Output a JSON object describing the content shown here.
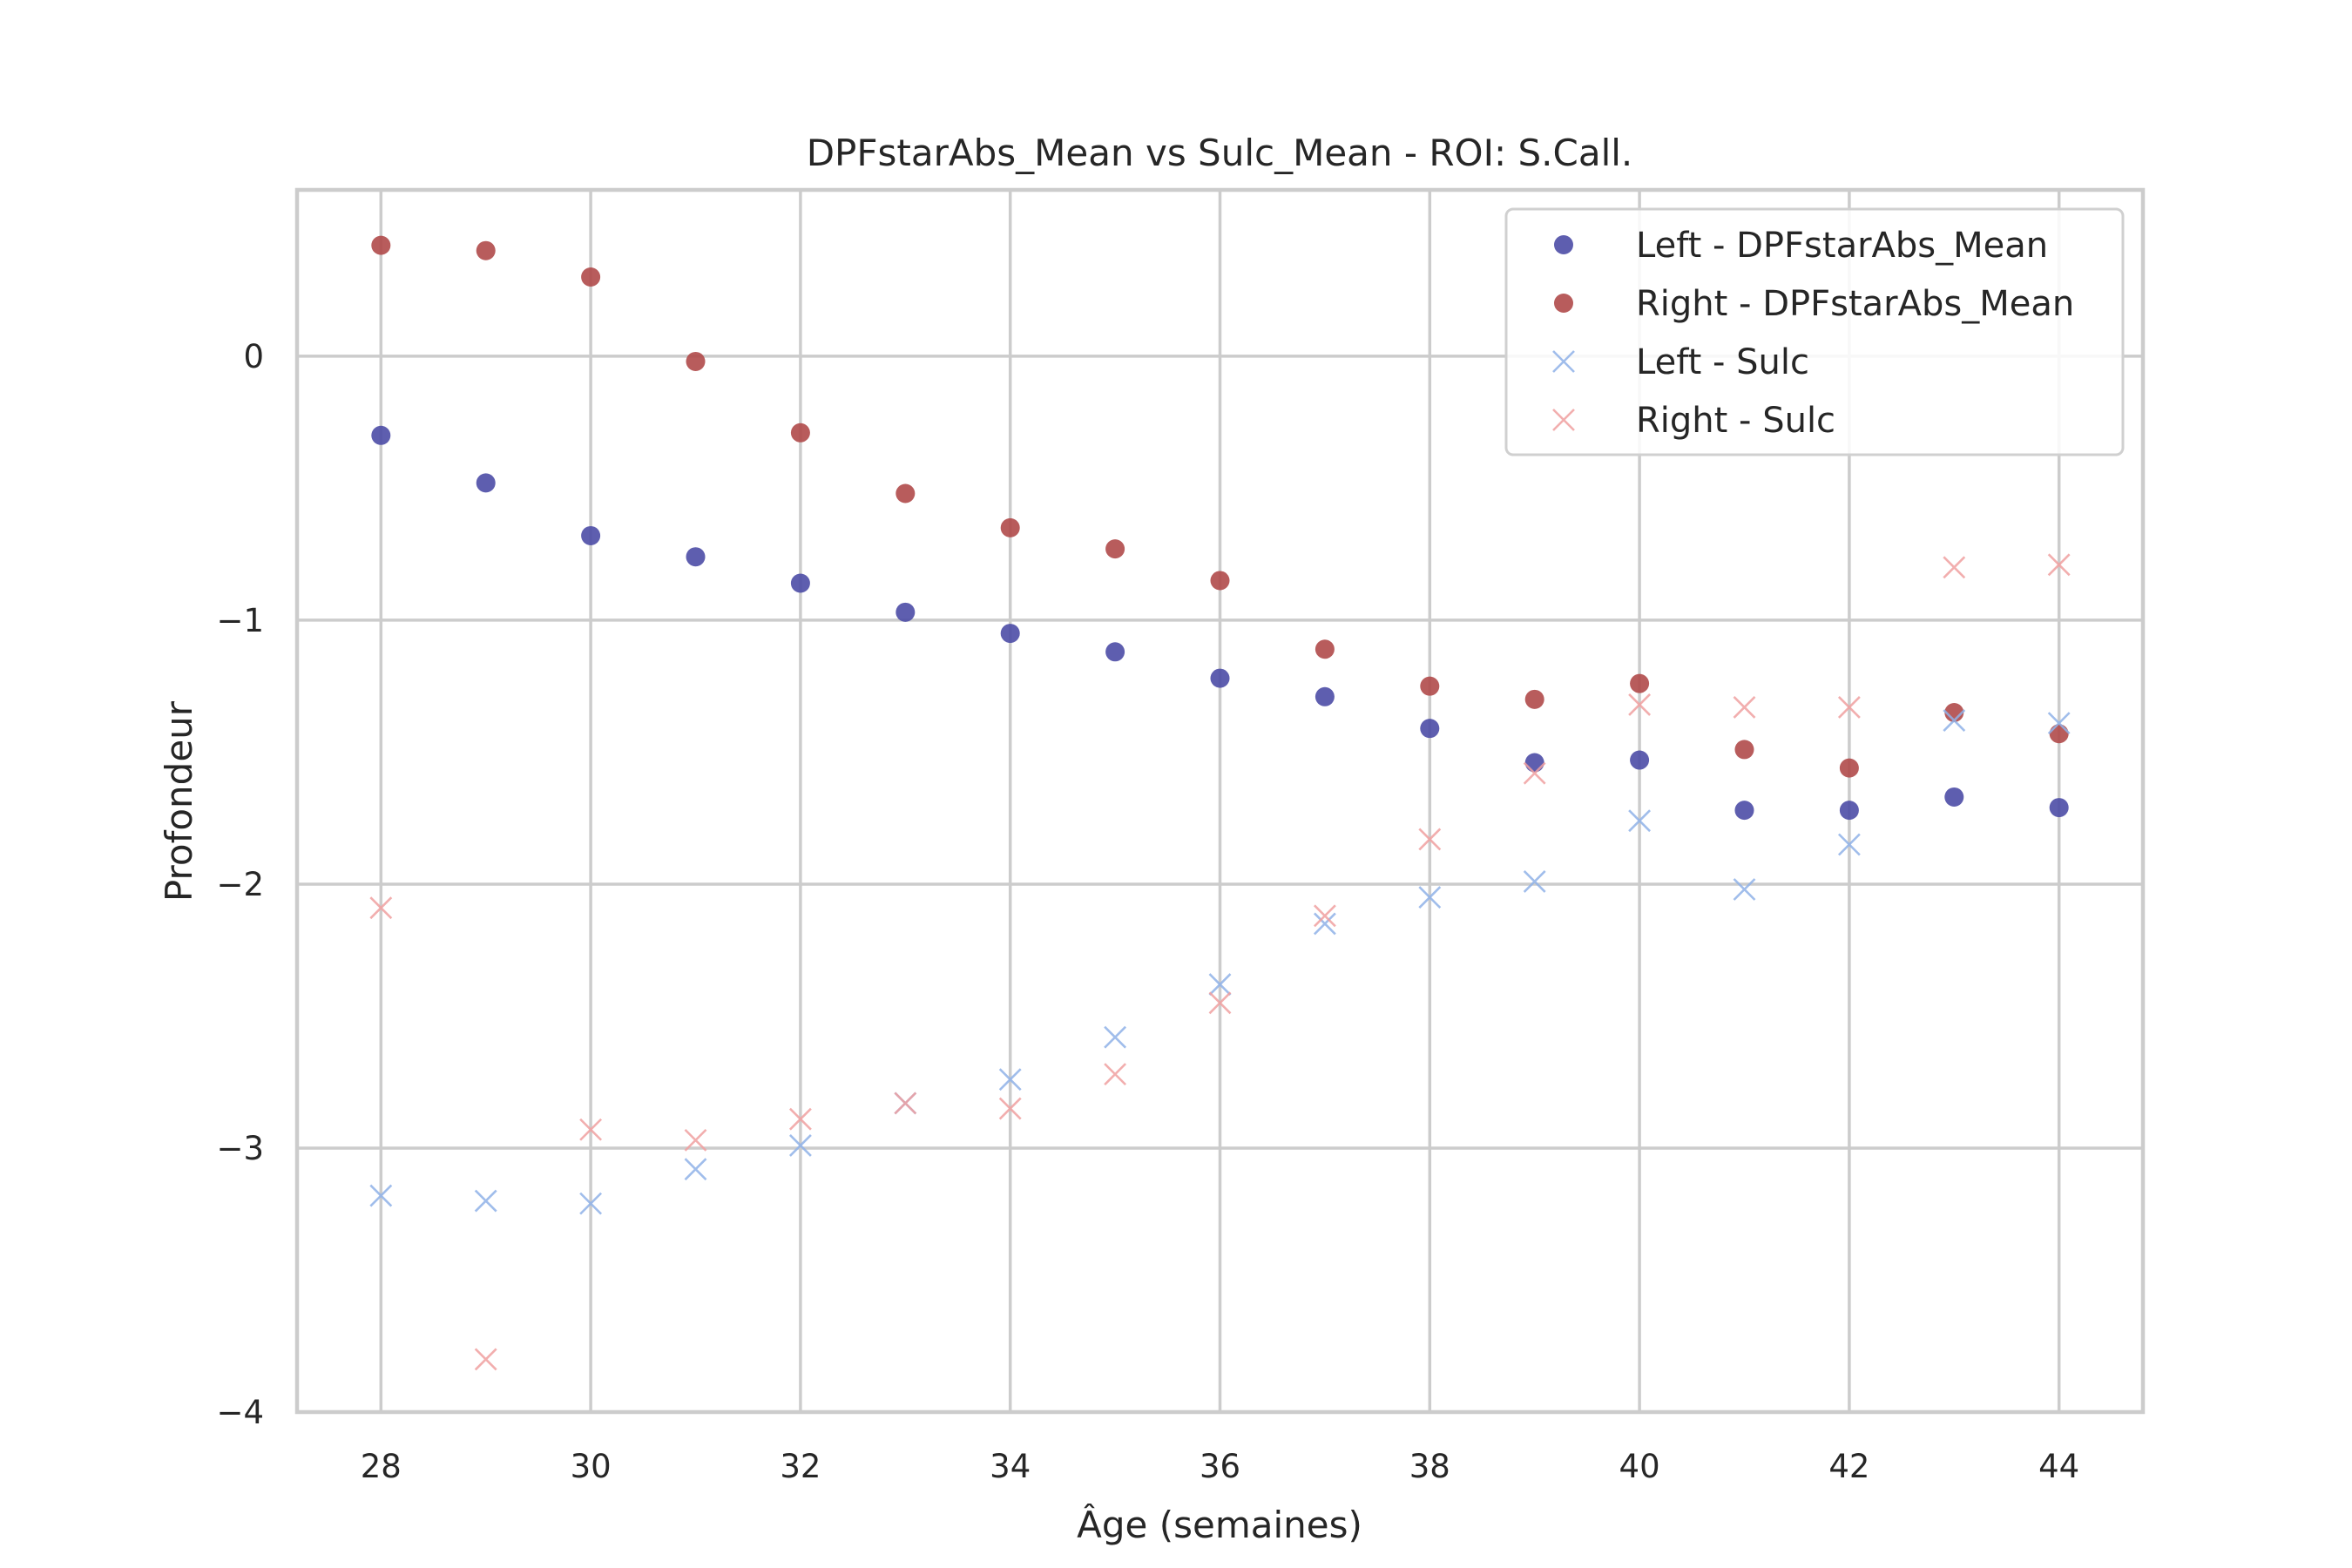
{
  "chart_data": {
    "type": "scatter",
    "title": "DPFstarAbs_Mean vs Sulc_Mean - ROI: S.Call.",
    "xlabel": "Âge (semaines)",
    "ylabel": "Profondeur",
    "xlim": [
      27.2,
      44.8
    ],
    "ylim": [
      -4.0,
      0.63
    ],
    "grid": true,
    "legend_position": "top-right",
    "xticks": [
      28,
      30,
      32,
      34,
      36,
      38,
      40,
      42,
      44
    ],
    "xtick_labels": [
      "28",
      "30",
      "32",
      "34",
      "36",
      "38",
      "40",
      "42",
      "44"
    ],
    "yticks": [
      0,
      -1,
      -2,
      -3,
      -4
    ],
    "ytick_labels": [
      "0",
      "−1",
      "−2",
      "−3",
      "−4"
    ],
    "x": [
      28,
      29,
      30,
      31,
      32,
      33,
      34,
      35,
      36,
      37,
      38,
      39,
      40,
      41,
      42,
      43,
      44
    ],
    "series": [
      {
        "name": "Left - DPFstarAbs_Mean",
        "marker": "circle",
        "color": "#4c4ca6",
        "values": [
          -0.3,
          -0.48,
          -0.68,
          -0.76,
          -0.86,
          -0.97,
          -1.05,
          -1.12,
          -1.22,
          -1.29,
          -1.41,
          -1.54,
          -1.53,
          -1.72,
          -1.72,
          -1.67,
          -1.71
        ]
      },
      {
        "name": "Right - DPFstarAbs_Mean",
        "marker": "circle",
        "color": "#b04a4a",
        "values": [
          0.42,
          0.4,
          0.3,
          -0.02,
          -0.29,
          -0.52,
          -0.65,
          -0.73,
          -0.85,
          -1.11,
          -1.25,
          -1.3,
          -1.24,
          -1.49,
          -1.56,
          -1.35,
          -1.43
        ]
      },
      {
        "name": "Left - Sulc",
        "marker": "x",
        "color": "#8fb1e8",
        "values": [
          -3.18,
          -3.2,
          -3.21,
          -3.08,
          -2.99,
          -2.83,
          -2.74,
          -2.58,
          -2.38,
          -2.15,
          -2.05,
          -1.99,
          -1.76,
          -2.02,
          -1.85,
          -1.38,
          -1.39
        ]
      },
      {
        "name": "Right - Sulc",
        "marker": "x",
        "color": "#f0a0a0",
        "values": [
          -2.09,
          -3.8,
          -2.93,
          -2.97,
          -2.89,
          -2.83,
          -2.85,
          -2.72,
          -2.45,
          -2.12,
          -1.83,
          -1.58,
          -1.32,
          -1.33,
          -1.33,
          -0.8,
          -0.79
        ]
      }
    ]
  }
}
